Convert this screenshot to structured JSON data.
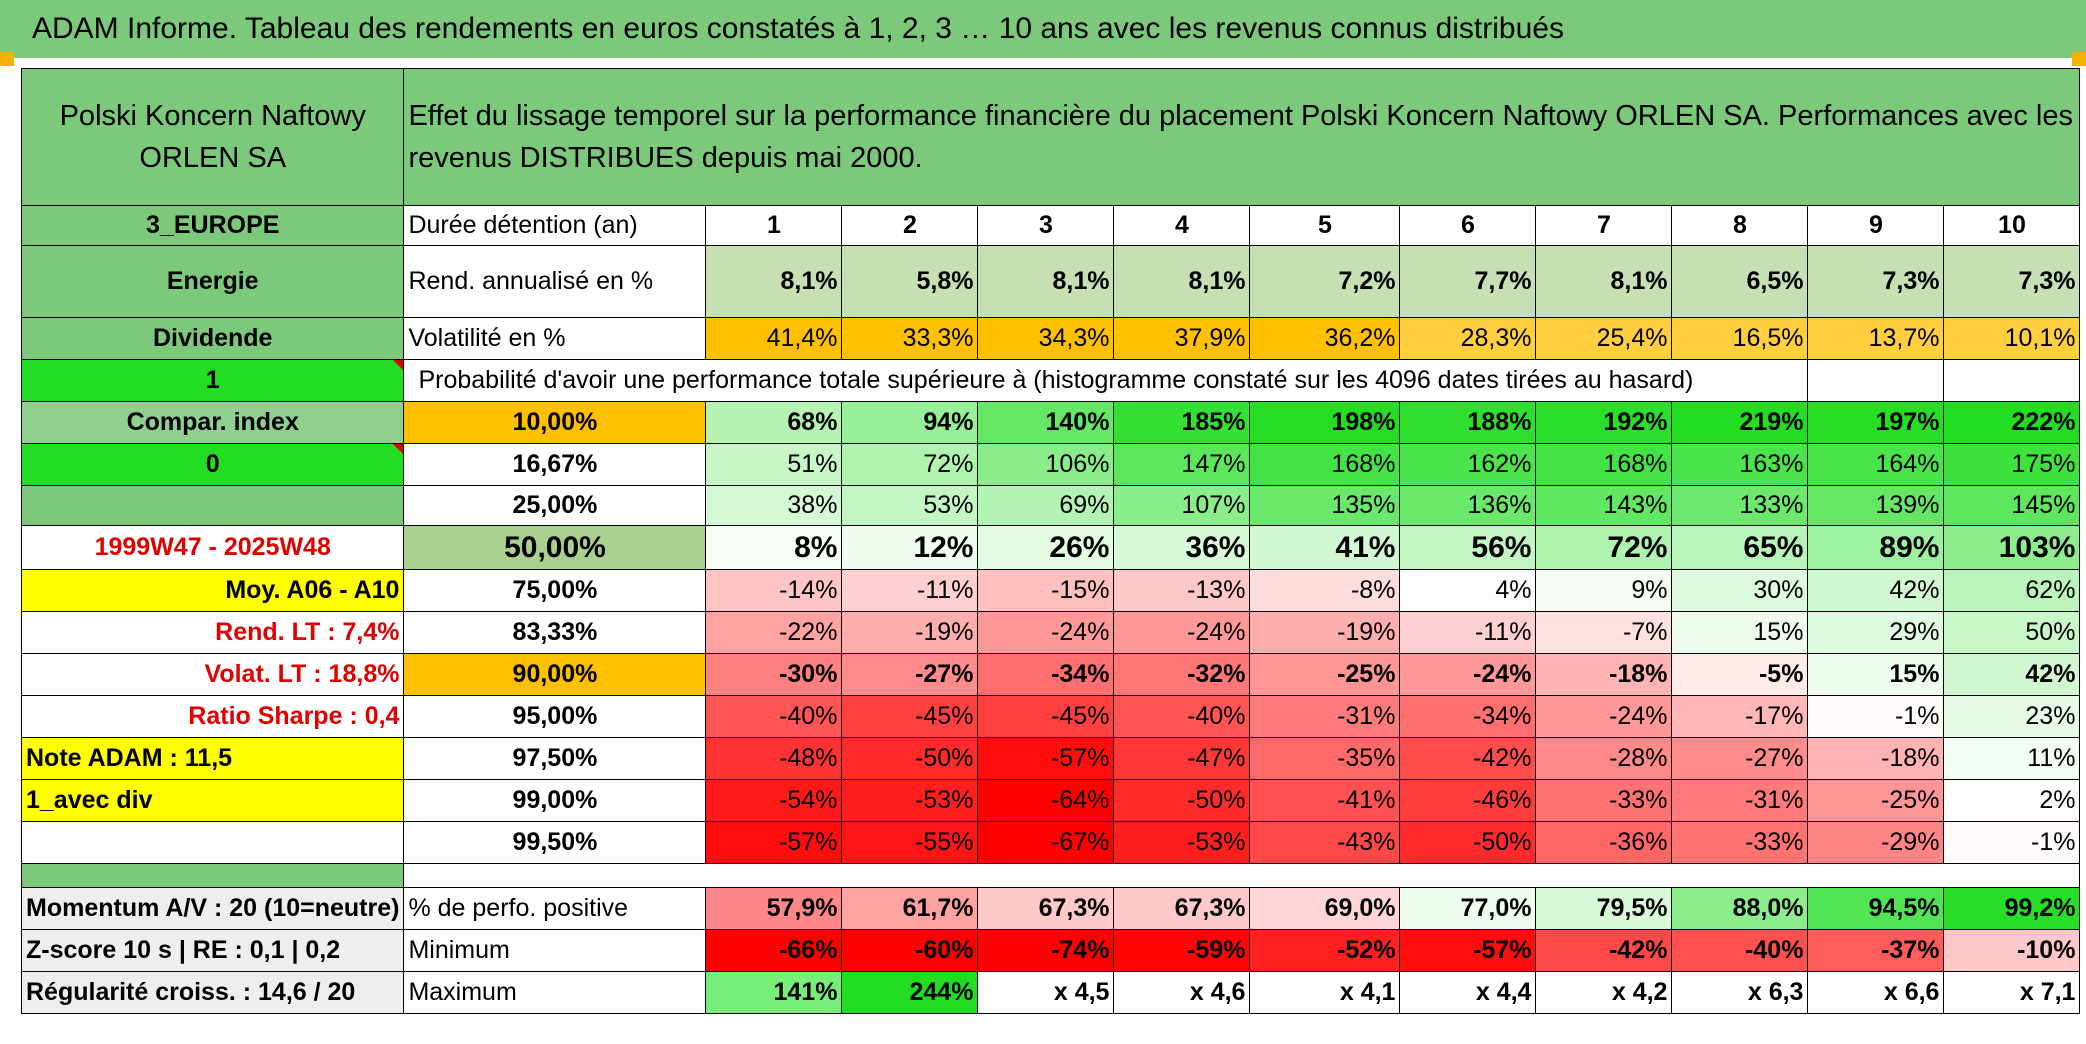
{
  "title": "ADAM Informe. Tableau des rendements en euros constatés à 1, 2, 3 … 10 ans avec les revenus connus distribués",
  "company": "Polski Koncern Naftowy ORLEN SA",
  "header_desc": "Effet du lissage temporel sur la performance financière du placement Polski Koncern Naftowy ORLEN SA. Performances avec les revenus DISTRIBUES depuis mai 2000.",
  "left": {
    "region": "3_EUROPE",
    "sector": "Energie",
    "type": "Dividende",
    "val1": "1",
    "compar_index": "Compar. index",
    "val0": "0",
    "period": "1999W47 - 2025W48",
    "moy": "Moy. A06 - A10",
    "rend_lt": "Rend. LT :   7,4%",
    "volat_lt": "Volat. LT :   18,8%",
    "sharpe": "Ratio Sharpe :   0,4",
    "note": "Note ADAM : 11,5",
    "avec_div": "1_avec div",
    "momentum": "Momentum A/V : 20 (10=neutre)",
    "zscore": "Z-score 10 s | RE : 0,1 | 0,2",
    "regularite": "Régularité croiss. : 14,6 / 20"
  },
  "labels": {
    "duree": "Durée détention (an)",
    "rend": "Rend. annualisé en %",
    "volat": "Volatilité en %",
    "proba": "Probabilité d'avoir une performance totale supérieure à (histogramme constaté sur les 4096 dates tirées au hasard)",
    "positive": "% de perfo. positive",
    "minimum": "Minimum",
    "maximum": "Maximum"
  },
  "years": [
    "1",
    "2",
    "3",
    "4",
    "5",
    "6",
    "7",
    "8",
    "9",
    "10"
  ],
  "rend": [
    "8,1%",
    "5,8%",
    "8,1%",
    "8,1%",
    "7,2%",
    "7,7%",
    "8,1%",
    "6,5%",
    "7,3%",
    "7,3%"
  ],
  "volat": [
    "41,4%",
    "33,3%",
    "34,3%",
    "37,9%",
    "36,2%",
    "28,3%",
    "25,4%",
    "16,5%",
    "13,7%",
    "10,1%"
  ],
  "prob_rows": [
    {
      "p": "10,00%",
      "v": [
        "68%",
        "94%",
        "140%",
        "185%",
        "198%",
        "188%",
        "192%",
        "219%",
        "197%",
        "222%"
      ]
    },
    {
      "p": "16,67%",
      "v": [
        "51%",
        "72%",
        "106%",
        "147%",
        "168%",
        "162%",
        "168%",
        "163%",
        "164%",
        "175%"
      ]
    },
    {
      "p": "25,00%",
      "v": [
        "38%",
        "53%",
        "69%",
        "107%",
        "135%",
        "136%",
        "143%",
        "133%",
        "139%",
        "145%"
      ]
    },
    {
      "p": "50,00%",
      "v": [
        "8%",
        "12%",
        "26%",
        "36%",
        "41%",
        "56%",
        "72%",
        "65%",
        "89%",
        "103%"
      ]
    },
    {
      "p": "75,00%",
      "v": [
        "-14%",
        "-11%",
        "-15%",
        "-13%",
        "-8%",
        "4%",
        "9%",
        "30%",
        "42%",
        "62%"
      ]
    },
    {
      "p": "83,33%",
      "v": [
        "-22%",
        "-19%",
        "-24%",
        "-24%",
        "-19%",
        "-11%",
        "-7%",
        "15%",
        "29%",
        "50%"
      ]
    },
    {
      "p": "90,00%",
      "v": [
        "-30%",
        "-27%",
        "-34%",
        "-32%",
        "-25%",
        "-24%",
        "-18%",
        "-5%",
        "15%",
        "42%"
      ]
    },
    {
      "p": "95,00%",
      "v": [
        "-40%",
        "-45%",
        "-45%",
        "-40%",
        "-31%",
        "-34%",
        "-24%",
        "-17%",
        "-1%",
        "23%"
      ]
    },
    {
      "p": "97,50%",
      "v": [
        "-48%",
        "-50%",
        "-57%",
        "-47%",
        "-35%",
        "-42%",
        "-28%",
        "-27%",
        "-18%",
        "11%"
      ]
    },
    {
      "p": "99,00%",
      "v": [
        "-54%",
        "-53%",
        "-64%",
        "-50%",
        "-41%",
        "-46%",
        "-33%",
        "-31%",
        "-25%",
        "2%"
      ]
    },
    {
      "p": "99,50%",
      "v": [
        "-57%",
        "-55%",
        "-67%",
        "-53%",
        "-43%",
        "-50%",
        "-36%",
        "-33%",
        "-29%",
        "-1%"
      ]
    }
  ],
  "positive": [
    "57,9%",
    "61,7%",
    "67,3%",
    "67,3%",
    "69,0%",
    "77,0%",
    "79,5%",
    "88,0%",
    "94,5%",
    "99,2%"
  ],
  "minimum": [
    "-66%",
    "-60%",
    "-74%",
    "-59%",
    "-52%",
    "-57%",
    "-42%",
    "-40%",
    "-37%",
    "-10%"
  ],
  "maximum": [
    "141%",
    "244%",
    "x 4,5",
    "x 4,6",
    "x 4,1",
    "x 4,4",
    "x 4,2",
    "x 6,3",
    "x 6,6",
    "x 7,1"
  ],
  "colors": {
    "header_green": "#7cc97c",
    "lime": "#22dd22",
    "yellow": "#ffff00",
    "orange": "#ffc000",
    "red_text": "#e00000"
  }
}
